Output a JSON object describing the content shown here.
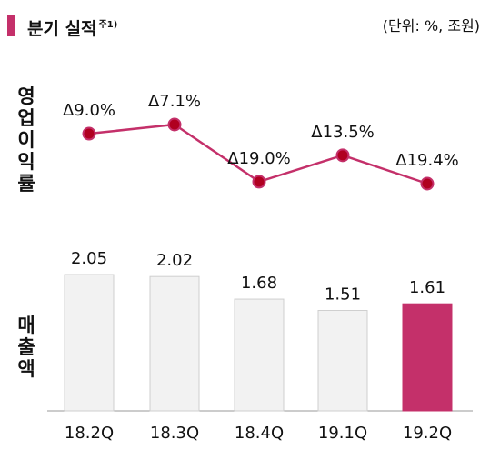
{
  "header": {
    "title": "분기 실적",
    "title_note": "주1)",
    "unit": "(단위: %, 조원)"
  },
  "labels": {
    "profit": [
      "영",
      "업",
      "이",
      "익",
      "률"
    ],
    "sales": [
      "매",
      "출",
      "액"
    ]
  },
  "colors": {
    "accent": "#c4306a",
    "line": "#c4306a",
    "marker_fill": "#b00020",
    "bar_default": "#f2f2f2",
    "bar_border": "#cfcfcf",
    "bar_highlight": "#c4306a",
    "axis": "#999999"
  },
  "chart_data": [
    {
      "type": "line",
      "title": "영업이익률",
      "categories": [
        "18.2Q",
        "18.3Q",
        "18.4Q",
        "19.1Q",
        "19.2Q"
      ],
      "labels": [
        "Δ9.0%",
        "Δ7.1%",
        "Δ19.0%",
        "Δ13.5%",
        "Δ19.4%"
      ],
      "values": [
        -9.0,
        -7.1,
        -19.0,
        -13.5,
        -19.4
      ]
    },
    {
      "type": "bar",
      "title": "매출액",
      "categories": [
        "18.2Q",
        "18.3Q",
        "18.4Q",
        "19.1Q",
        "19.2Q"
      ],
      "values": [
        2.05,
        2.02,
        1.68,
        1.51,
        1.61
      ],
      "labels": [
        "2.05",
        "2.02",
        "1.68",
        "1.51",
        "1.61"
      ],
      "highlight_index": 4
    }
  ]
}
